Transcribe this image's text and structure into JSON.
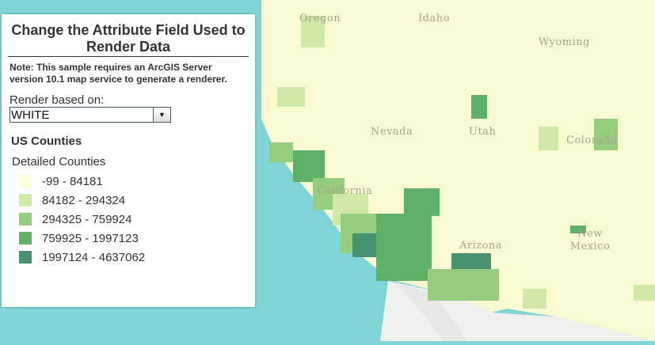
{
  "panel": {
    "title": "Change the Attribute Field Used to Render Data",
    "note": "Note: This sample requires an ArcGIS Server version 10.1 map service to generate a renderer.",
    "render_label": "Render based on:",
    "render_select": {
      "value": "WHITE",
      "icon": "chevron-down-icon"
    },
    "legend": {
      "layer": "US Counties",
      "sublayer": "Detailed Counties",
      "classes": [
        {
          "label": "-99 - 84181",
          "color": "#ffffd9"
        },
        {
          "label": "84182 - 294324",
          "color": "#d0e8a8"
        },
        {
          "label": "294325 - 759924",
          "color": "#96cc80"
        },
        {
          "label": "759925 - 1997123",
          "color": "#5db066"
        },
        {
          "label": "1997124 - 4637062",
          "color": "#4a9170"
        }
      ]
    }
  },
  "map": {
    "labels": [
      "Oregon",
      "Idaho",
      "Wyoming",
      "Nevada",
      "Utah",
      "Colorado",
      "California",
      "Arizona",
      "New Mexico"
    ],
    "colors": {
      "ocean": "#7fd4d6",
      "land": "#fafad2",
      "mexico": "#f2f2f2"
    }
  }
}
